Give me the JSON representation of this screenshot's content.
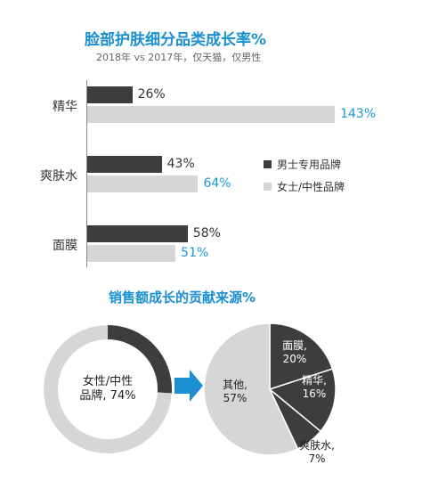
{
  "colors": {
    "title": "#1a8fd1",
    "subtitle": "#666666",
    "male": "#3d3d3d",
    "female": "#d6d6d6",
    "male_label": "#333333",
    "female_label": "#1a9ad6",
    "axis": "#888888",
    "arrow": "#1a8fd1",
    "white": "#ffffff",
    "dark_text": "#222222"
  },
  "header": {
    "title": "脸部护肤细分品类成长率%",
    "subtitle": "2018年 vs 2017年，仅天猫，仅男性"
  },
  "section2": {
    "title": "销售额成长的贡献来源%"
  },
  "chart_data": [
    {
      "type": "bar",
      "orientation": "horizontal",
      "title": "脸部护肤细分品类成长率%",
      "subtitle": "2018年 vs 2017年，仅天猫，仅男性",
      "categories": [
        "精华",
        "爽肤水",
        "面膜"
      ],
      "series": [
        {
          "name": "男士专用品牌",
          "values": [
            26,
            43,
            58
          ],
          "labels": [
            "26%",
            "43%",
            "58%"
          ]
        },
        {
          "name": "女士/中性品牌",
          "values": [
            143,
            64,
            51
          ],
          "labels": [
            "143%",
            "64%",
            "51%"
          ]
        }
      ],
      "xlim": [
        0,
        145
      ],
      "legend": [
        "男士专用品牌",
        "女士/中性品牌"
      ],
      "legend_position": "right",
      "grid": false
    },
    {
      "type": "pie",
      "variant": "donut",
      "title": "销售额成长的贡献来源%",
      "slices": [
        {
          "name": "女性/中性品牌",
          "value": 74
        },
        {
          "name": "男士专用品牌",
          "value": 26
        }
      ],
      "center_label": [
        "女性/中性",
        "品牌, 74%"
      ]
    },
    {
      "type": "pie",
      "slices": [
        {
          "name": "面膜",
          "value": 20,
          "label": [
            "面膜,",
            "20%"
          ]
        },
        {
          "name": "精华",
          "value": 16,
          "label": [
            "精华,",
            "16%"
          ]
        },
        {
          "name": "爽肤水",
          "value": 7,
          "label": [
            "爽肤水,",
            "7%"
          ]
        },
        {
          "name": "其他",
          "value": 57,
          "label": [
            "其他,",
            "57%"
          ]
        }
      ]
    }
  ]
}
